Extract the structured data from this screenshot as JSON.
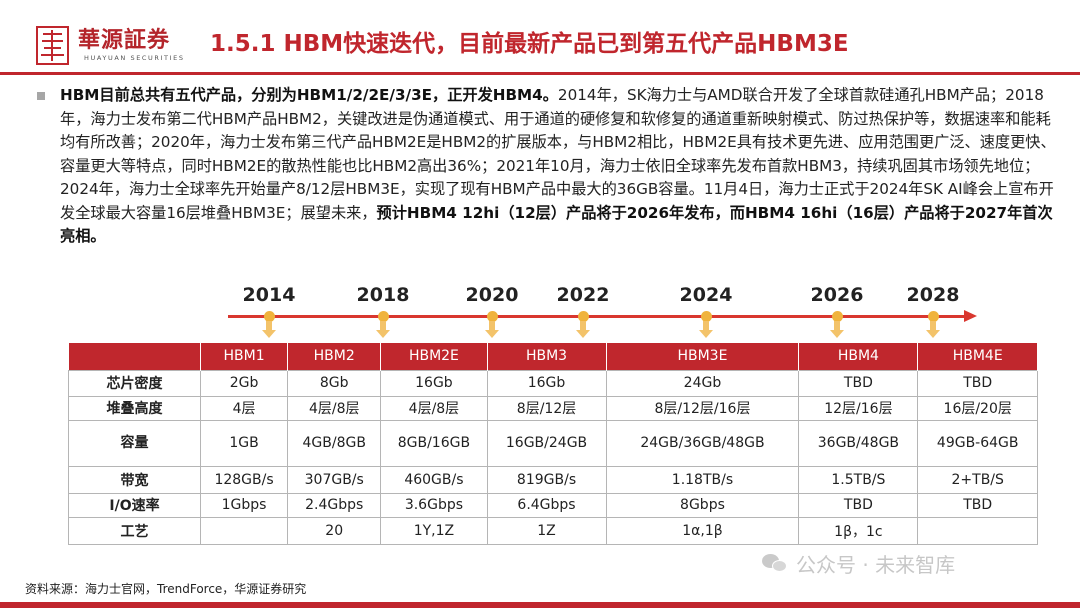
{
  "header": {
    "logo_cn": "華源証券",
    "logo_en": "HUAYUAN SECURITIES",
    "title": "1.5.1 HBM快速迭代，目前最新产品已到第五代产品HBM3E",
    "accent_color": "#c0262d"
  },
  "body": {
    "seg1_bold": "HBM目前总共有五代产品，分别为HBM1/2/2E/3/3E，正开发HBM4。",
    "seg2": "2014年，SK海力士与AMD联合开发了全球首款硅通孔HBM产品；2018年，海力士发布第二代HBM产品HBM2，关键改进是伪通道模式、用于通道的硬修复和软修复的通道重新映射模式、防过热保护等，数据速率和能耗均有所改善；2020年，海力士发布第三代产品HBM2E是HBM2的扩展版本，与HBM2相比，HBM2E具有技术更先进、应用范围更广泛、速度更快、容量更大等特点，同时HBM2E的散热性能也比HBM2高出36%；2021年10月，海力士依旧全球率先发布首款HBM3，持续巩固其市场领先地位；2024年，海力士全球率先开始量产8/12层HBM3E，实现了现有HBM产品中最大的36GB容量。11月4日，海力士正式于2024年SK AI峰会上宣布开发全球最大容量16层堆叠HBM3E；展望未来，",
    "seg3_bold": "预计HBM4 12hi（12层）产品将于2026年发布，而HBM4 16hi（16层）产品将于2027年首次亮相。"
  },
  "timeline": {
    "years": [
      "2014",
      "2018",
      "2020",
      "2022",
      "2024",
      "2026",
      "2028"
    ],
    "line_color": "#d9372f",
    "dot_color": "#f0b33c"
  },
  "table": {
    "header_color": "#c0272d",
    "columns": [
      "",
      "HBM1",
      "HBM2",
      "HBM2E",
      "HBM3",
      "HBM3E",
      "HBM4",
      "HBM4E"
    ],
    "rows": [
      {
        "label": "芯片密度",
        "cells": [
          "2Gb",
          "8Gb",
          "16Gb",
          "16Gb",
          "24Gb",
          "TBD",
          "TBD"
        ]
      },
      {
        "label": "堆叠高度",
        "cells": [
          "4层",
          "4层/8层",
          "4层/8层",
          "8层/12层",
          "8层/12层/16层",
          "12层/16层",
          "16层/20层"
        ]
      },
      {
        "label": "容量",
        "cells": [
          "1GB",
          "4GB/8GB",
          "8GB/16GB",
          "16GB/24GB",
          "24GB/36GB/48GB",
          "36GB/48GB",
          "49GB-64GB"
        ]
      },
      {
        "label": "带宽",
        "cells": [
          "128GB/s",
          "307GB/s",
          "460GB/s",
          "819GB/s",
          "1.18TB/s",
          "1.5TB/S",
          "2+TB/S"
        ]
      },
      {
        "label": "I/O速率",
        "cells": [
          "1Gbps",
          "2.4Gbps",
          "3.6Gbps",
          "6.4Gbps",
          "8Gbps",
          "TBD",
          "TBD"
        ]
      },
      {
        "label": "工艺",
        "cells": [
          "",
          "20",
          "1Y,1Z",
          "1Z",
          "1α,1β",
          "1β，1c",
          ""
        ]
      }
    ]
  },
  "footer": {
    "source": "资料来源：海力士官网，TrendForce，华源证券研究"
  },
  "watermark": {
    "text": "公众号 · 未来智库"
  }
}
